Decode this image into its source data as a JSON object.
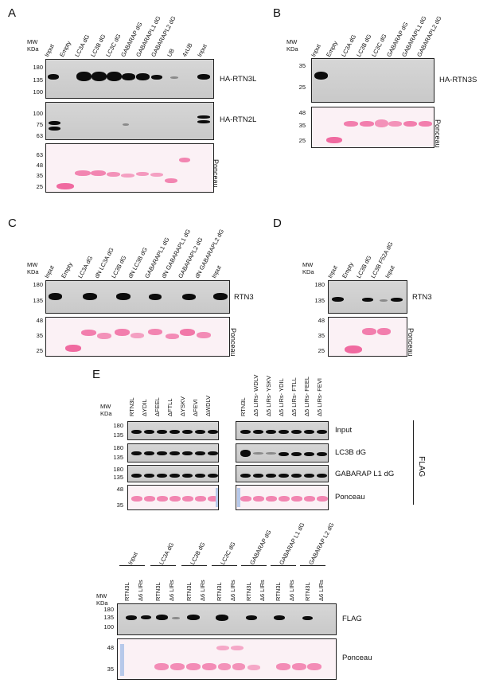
{
  "panels": {
    "A": "A",
    "B": "B",
    "C": "C",
    "D": "D",
    "E": "E"
  },
  "mw_header": {
    "line1": "MW",
    "line2": "KDa"
  },
  "panelA": {
    "lanes": [
      "Input",
      "Empty",
      "LC3A dG",
      "LC3B dG",
      "LC3C dG",
      "GABARAP dG",
      "GABARAPL1 dG",
      "GABARAPL2 dG",
      "UB",
      "4xUB",
      "Input"
    ],
    "blot1": {
      "label": "HA-RTN3L",
      "mw": [
        "180",
        "135",
        "100"
      ]
    },
    "blot2": {
      "label": "HA-RTN2L",
      "mw": [
        "100",
        "75",
        "63"
      ]
    },
    "blot3": {
      "label": "Ponceau",
      "mw": [
        "63",
        "48",
        "35",
        "25"
      ]
    }
  },
  "panelB": {
    "lanes": [
      "Input",
      "Empty",
      "LC3A dG",
      "LC3B dG",
      "LC3C dG",
      "GABARAP dG",
      "GABARAPL1 dG",
      "GABARAPL2 dG"
    ],
    "blot1": {
      "label": "HA-RTN3S",
      "mw": [
        "35",
        "25"
      ]
    },
    "blot2": {
      "label": "Ponceau",
      "mw": [
        "48",
        "35",
        "25"
      ]
    }
  },
  "panelC": {
    "lanes": [
      "Input",
      "Empty",
      "LC3A dG",
      "dN LC3A dG",
      "LC3B dG",
      "dN LC3B dG",
      "GABARAPL1 dG",
      "dN GABARAPL1 dG",
      "GABARAPL2 dG",
      "dN GABARAPL2 dG",
      "Input"
    ],
    "blot1": {
      "label": "RTN3",
      "mw": [
        "180",
        "135"
      ]
    },
    "blot2": {
      "label": "Ponceau",
      "mw": [
        "48",
        "35",
        "25"
      ]
    }
  },
  "panelD": {
    "lanes": [
      "Input",
      "Empty",
      "LC3B dG",
      "LC3B F52A dG",
      "Input"
    ],
    "blot1": {
      "label": "RTN3",
      "mw": [
        "180",
        "135"
      ]
    },
    "blot2": {
      "label": "Ponceau",
      "mw": [
        "48",
        "35",
        "25"
      ]
    }
  },
  "panelE_top": {
    "left_lanes": [
      "RTN3L",
      "ΔYDIL",
      "ΔFEEL",
      "ΔFTLL",
      "ΔYSKV",
      "ΔFEVI",
      "ΔWDLV"
    ],
    "right_lanes": [
      "RTN3L",
      "Δ5 LIRs- WDLV",
      "Δ5 LIRs- YSKV",
      "Δ5 LIRs- YDIL",
      "Δ5 LIRs- FTLL",
      "Δ5 LIRs- FEEL",
      "Δ5 LIRs- FEVI"
    ],
    "rows": [
      "Input",
      "LC3B dG",
      "GABARAP L1 dG",
      "Ponceau"
    ],
    "row_mw": [
      [
        "180",
        "135"
      ],
      [
        "180",
        "135"
      ],
      [
        "180",
        "135"
      ],
      [
        "48",
        "35"
      ]
    ],
    "flag": "FLAG"
  },
  "panelE_bottom": {
    "groups": [
      "Input",
      "LC3A dG",
      "LC3B dG",
      "LC3C dG",
      "GABARAP dG",
      "GABARAP L1 dG",
      "GABARAP L2 dG"
    ],
    "sublanes": [
      "RTN3L",
      "Δ6 LIRs"
    ],
    "blot1": {
      "label": "FLAG",
      "mw": [
        "180",
        "135",
        "100"
      ]
    },
    "blot2": {
      "label": "Ponceau",
      "mw": [
        "48",
        "35"
      ]
    }
  }
}
